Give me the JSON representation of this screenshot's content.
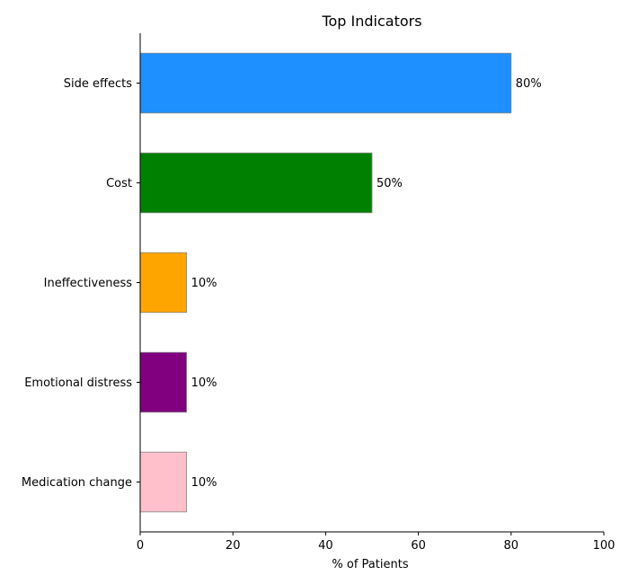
{
  "chart_data": {
    "type": "bar",
    "orientation": "horizontal",
    "title": "Top Indicators",
    "xlabel": "% of Patients",
    "ylabel": "",
    "categories": [
      "Side effects",
      "Cost",
      "Ineffectiveness",
      "Emotional distress",
      "Medication change"
    ],
    "values": [
      80,
      50,
      10,
      10,
      10
    ],
    "value_labels": [
      "80%",
      "50%",
      "10%",
      "10%",
      "10%"
    ],
    "colors": [
      "#1e90ff",
      "#008000",
      "#ffa500",
      "#800080",
      "#ffc0cb"
    ],
    "xlim": [
      0,
      100
    ],
    "xticks": [
      0,
      20,
      40,
      60,
      80,
      100
    ],
    "xtick_labels": [
      "0",
      "20",
      "40",
      "60",
      "80",
      "100"
    ],
    "grid": false,
    "legend": "none"
  }
}
